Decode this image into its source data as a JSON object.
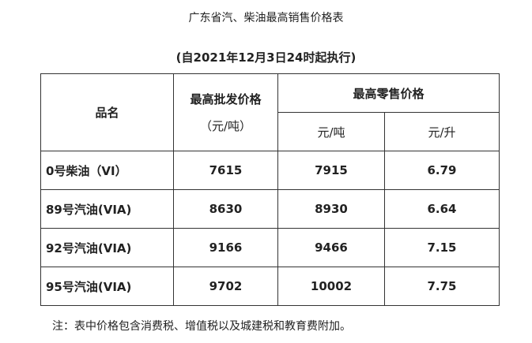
{
  "title": "广东省汽、柴油最高销售价格表",
  "subtitle": "(自2021年12月3日24时起执行)",
  "table": {
    "header": {
      "name": "品名",
      "wholesale": "最高批发价格",
      "wholesale_unit": "（元/吨）",
      "retail": "最高零售价格",
      "retail_units": [
        "元/吨",
        "元/升"
      ]
    },
    "rows": [
      [
        "0号柴油（VI）",
        "7615",
        "7915",
        "6.79"
      ],
      [
        "89号汽油(VIA)",
        "8630",
        "8930",
        "6.64"
      ],
      [
        "92号汽油(VIA)",
        "9166",
        "9466",
        "7.15"
      ],
      [
        "95号汽油(VIA)",
        "9702",
        "10002",
        "7.75"
      ]
    ]
  },
  "note": "注：表中价格包含消费税、增值税以及城建税和教育费附加。"
}
